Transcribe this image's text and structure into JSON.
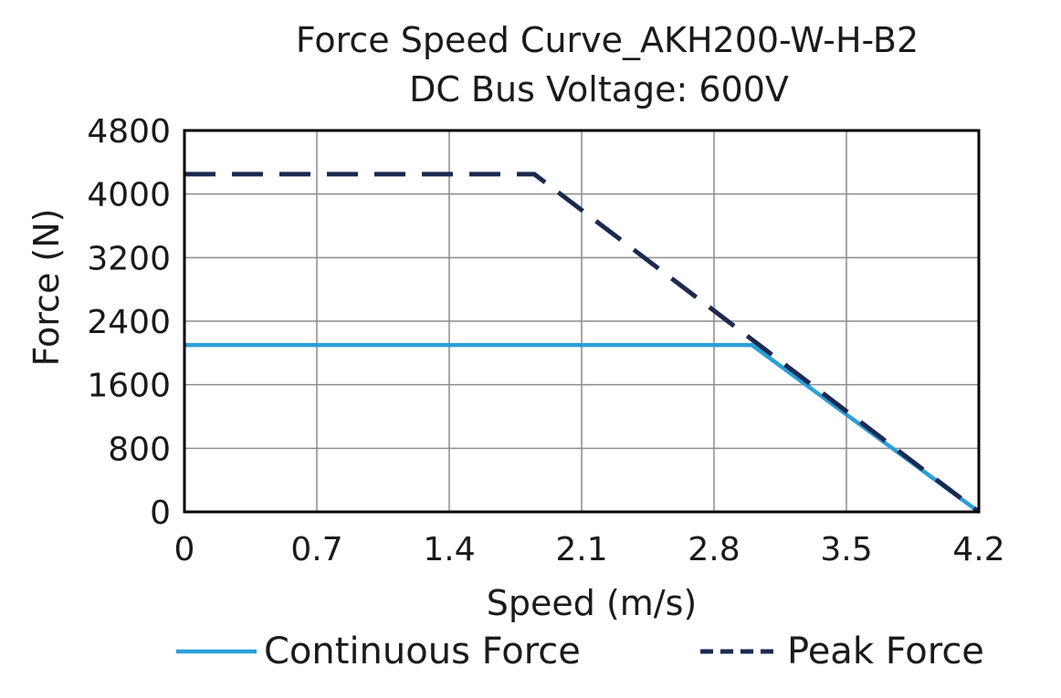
{
  "chart_data": {
    "type": "line",
    "title": "Force Speed Curve_AKH200-W-H-B2",
    "subtitle": "DC Bus Voltage: 600V",
    "xlabel": "Speed (m/s)",
    "ylabel": "Force (N)",
    "xlim": [
      0,
      4.2
    ],
    "ylim": [
      0,
      4800
    ],
    "xticks": [
      "0",
      "0.7",
      "1.4",
      "2.1",
      "2.8",
      "3.5",
      "4.2"
    ],
    "yticks": [
      "0",
      "800",
      "1600",
      "2400",
      "3200",
      "4000",
      "4800"
    ],
    "grid": true,
    "legend_position": "bottom",
    "series": [
      {
        "name": "Continuous Force",
        "style": "solid",
        "color": "#2a9fd8",
        "points": [
          [
            0,
            2100
          ],
          [
            3.0,
            2100
          ],
          [
            4.2,
            0
          ]
        ]
      },
      {
        "name": "Peak Force",
        "style": "dashed",
        "color": "#1c2a50",
        "points": [
          [
            0,
            4250
          ],
          [
            1.85,
            4250
          ],
          [
            4.2,
            0
          ]
        ]
      }
    ]
  }
}
